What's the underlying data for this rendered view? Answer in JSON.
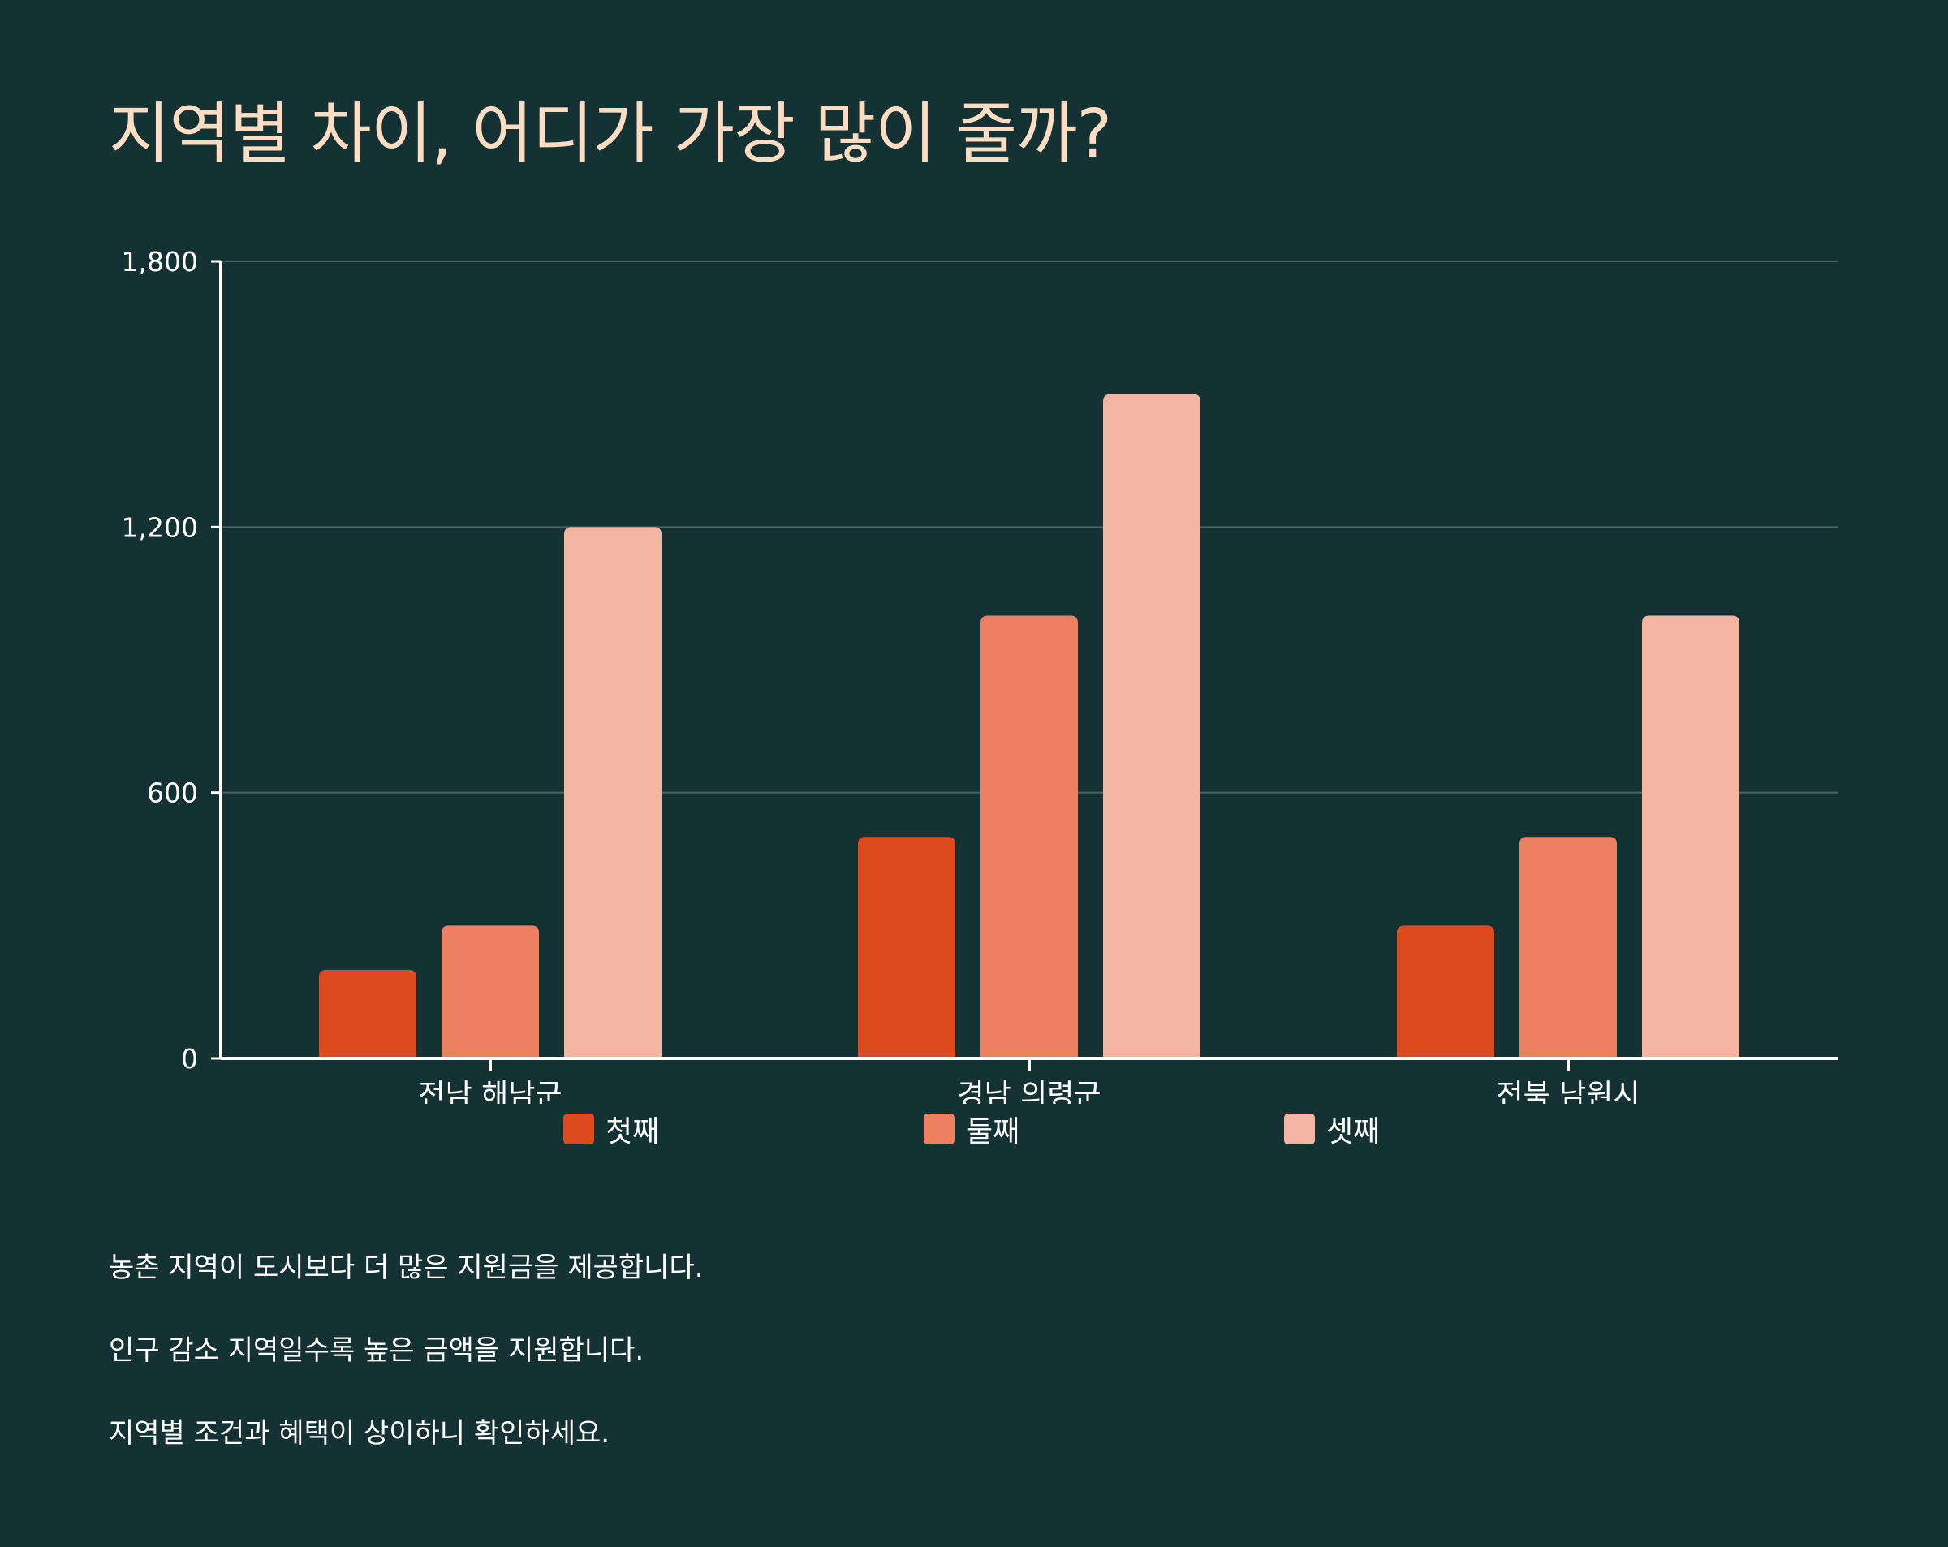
{
  "title": "지역별 차이, 어디가 가장 많이 줄까?",
  "colors": {
    "background": "#143233",
    "title": "#fcdcc2",
    "grid": "#4a6261",
    "axis": "#ffffff",
    "series": [
      "#dc4a1d",
      "#ec8061",
      "#f4b5a2"
    ]
  },
  "chart_data": {
    "type": "bar",
    "title": "지역별 차이, 어디가 가장 많이 줄까?",
    "xlabel": "",
    "ylabel": "",
    "categories": [
      "전남 해남군",
      "경남 의령군",
      "전북 남원시"
    ],
    "series": [
      {
        "name": "첫째",
        "values": [
          200,
          500,
          300
        ]
      },
      {
        "name": "둘째",
        "values": [
          300,
          1000,
          500
        ]
      },
      {
        "name": "셋째",
        "values": [
          1200,
          1500,
          1000
        ]
      }
    ],
    "ylim": [
      0,
      1800
    ],
    "yticks": [
      0,
      600,
      1200,
      1800
    ],
    "ytick_labels": [
      "0",
      "600",
      "1,200",
      "1,800"
    ],
    "grid": true,
    "legend_position": "bottom"
  },
  "notes": [
    "농촌 지역이 도시보다 더 많은 지원금을 제공합니다.",
    "인구 감소 지역일수록 높은 금액을 지원합니다.",
    "지역별 조건과 혜택이 상이하니 확인하세요."
  ]
}
